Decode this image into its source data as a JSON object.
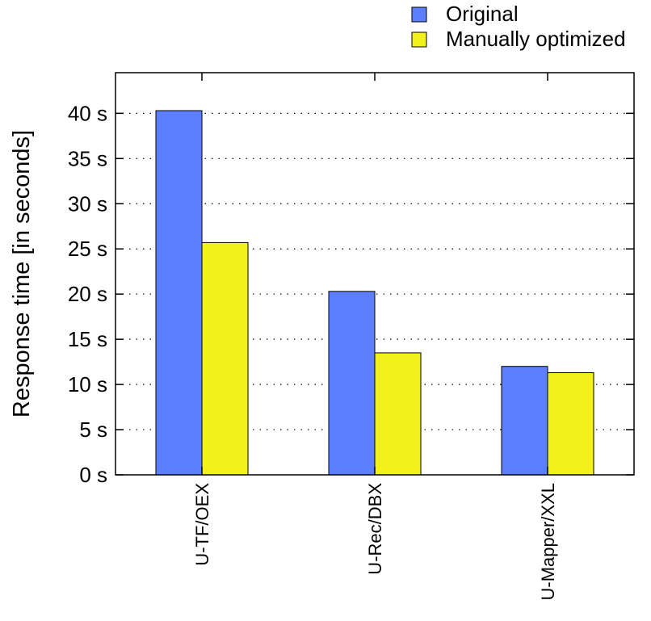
{
  "chart_data": {
    "type": "bar",
    "title": "",
    "xlabel": "",
    "ylabel": "Response time [in seconds]",
    "categories": [
      "U-TF/OEX",
      "U-Rec/DBX",
      "U-Mapper/XXL"
    ],
    "series": [
      {
        "name": "Original",
        "color": "#5b7fff",
        "values": [
          40.3,
          20.3,
          12.0
        ]
      },
      {
        "name": "Manually optimized",
        "color": "#f2f21a",
        "values": [
          25.7,
          13.5,
          11.3
        ]
      }
    ],
    "ylim": [
      0,
      44.5
    ],
    "yticks": [
      0,
      5,
      10,
      15,
      20,
      25,
      30,
      35,
      40
    ],
    "ytick_labels": [
      "0 s",
      "5 s",
      "10 s",
      "15 s",
      "20 s",
      "25 s",
      "30 s",
      "35 s",
      "40 s"
    ],
    "grid": true,
    "legend_position": "top-right"
  }
}
